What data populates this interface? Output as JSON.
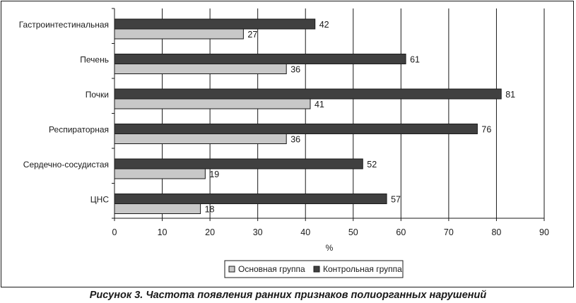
{
  "chart_data": {
    "type": "bar",
    "orientation": "horizontal",
    "categories": [
      "Гастроинтестинальная",
      "Печень",
      "Почки",
      "Респираторная",
      "Сердечно-сосудистая",
      "ЦНС"
    ],
    "series": [
      {
        "name": "Контрольная группа",
        "values": [
          42,
          61,
          81,
          76,
          52,
          57
        ],
        "color": "#404040"
      },
      {
        "name": "Основная группа",
        "values": [
          27,
          36,
          41,
          36,
          19,
          18
        ],
        "color": "#c8c8c8"
      }
    ],
    "xlabel": "%",
    "xlim": [
      0,
      90
    ],
    "xticks": [
      0,
      10,
      20,
      30,
      40,
      50,
      60,
      70,
      80,
      90
    ],
    "grid": "vertical",
    "legend_position": "bottom-center",
    "legend_order": [
      "Основная группа",
      "Контрольная группа"
    ]
  },
  "caption": "Рисунок 3. Частота появления ранних признаков полиорганных нарушений"
}
